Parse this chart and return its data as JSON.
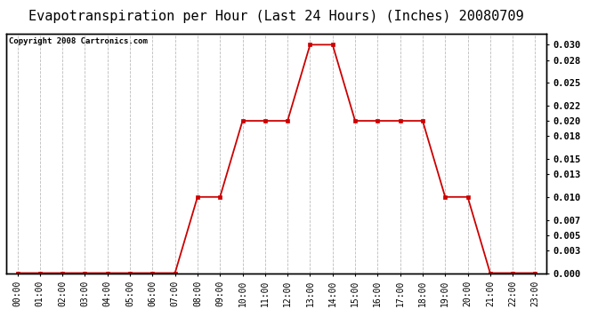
{
  "title": "Evapotranspiration per Hour (Last 24 Hours) (Inches) 20080709",
  "copyright": "Copyright 2008 Cartronics.com",
  "hours": [
    "00:00",
    "01:00",
    "02:00",
    "03:00",
    "04:00",
    "05:00",
    "06:00",
    "07:00",
    "08:00",
    "09:00",
    "10:00",
    "11:00",
    "12:00",
    "13:00",
    "14:00",
    "15:00",
    "16:00",
    "17:00",
    "18:00",
    "19:00",
    "20:00",
    "21:00",
    "22:00",
    "23:00"
  ],
  "values": [
    0.0,
    0.0,
    0.0,
    0.0,
    0.0,
    0.0,
    0.0,
    0.0,
    0.01,
    0.01,
    0.02,
    0.02,
    0.02,
    0.03,
    0.03,
    0.02,
    0.02,
    0.02,
    0.02,
    0.01,
    0.01,
    0.0,
    0.0,
    0.0
  ],
  "yticks": [
    0.0,
    0.003,
    0.005,
    0.007,
    0.01,
    0.013,
    0.015,
    0.018,
    0.02,
    0.022,
    0.025,
    0.028,
    0.03
  ],
  "ymax": 0.0315,
  "line_color": "#cc0000",
  "marker_color": "#cc0000",
  "bg_color": "#ffffff",
  "grid_color": "#bbbbbb",
  "title_fontsize": 11,
  "copyright_fontsize": 6.5,
  "tick_fontsize": 7,
  "ytick_fontsize": 7.5
}
